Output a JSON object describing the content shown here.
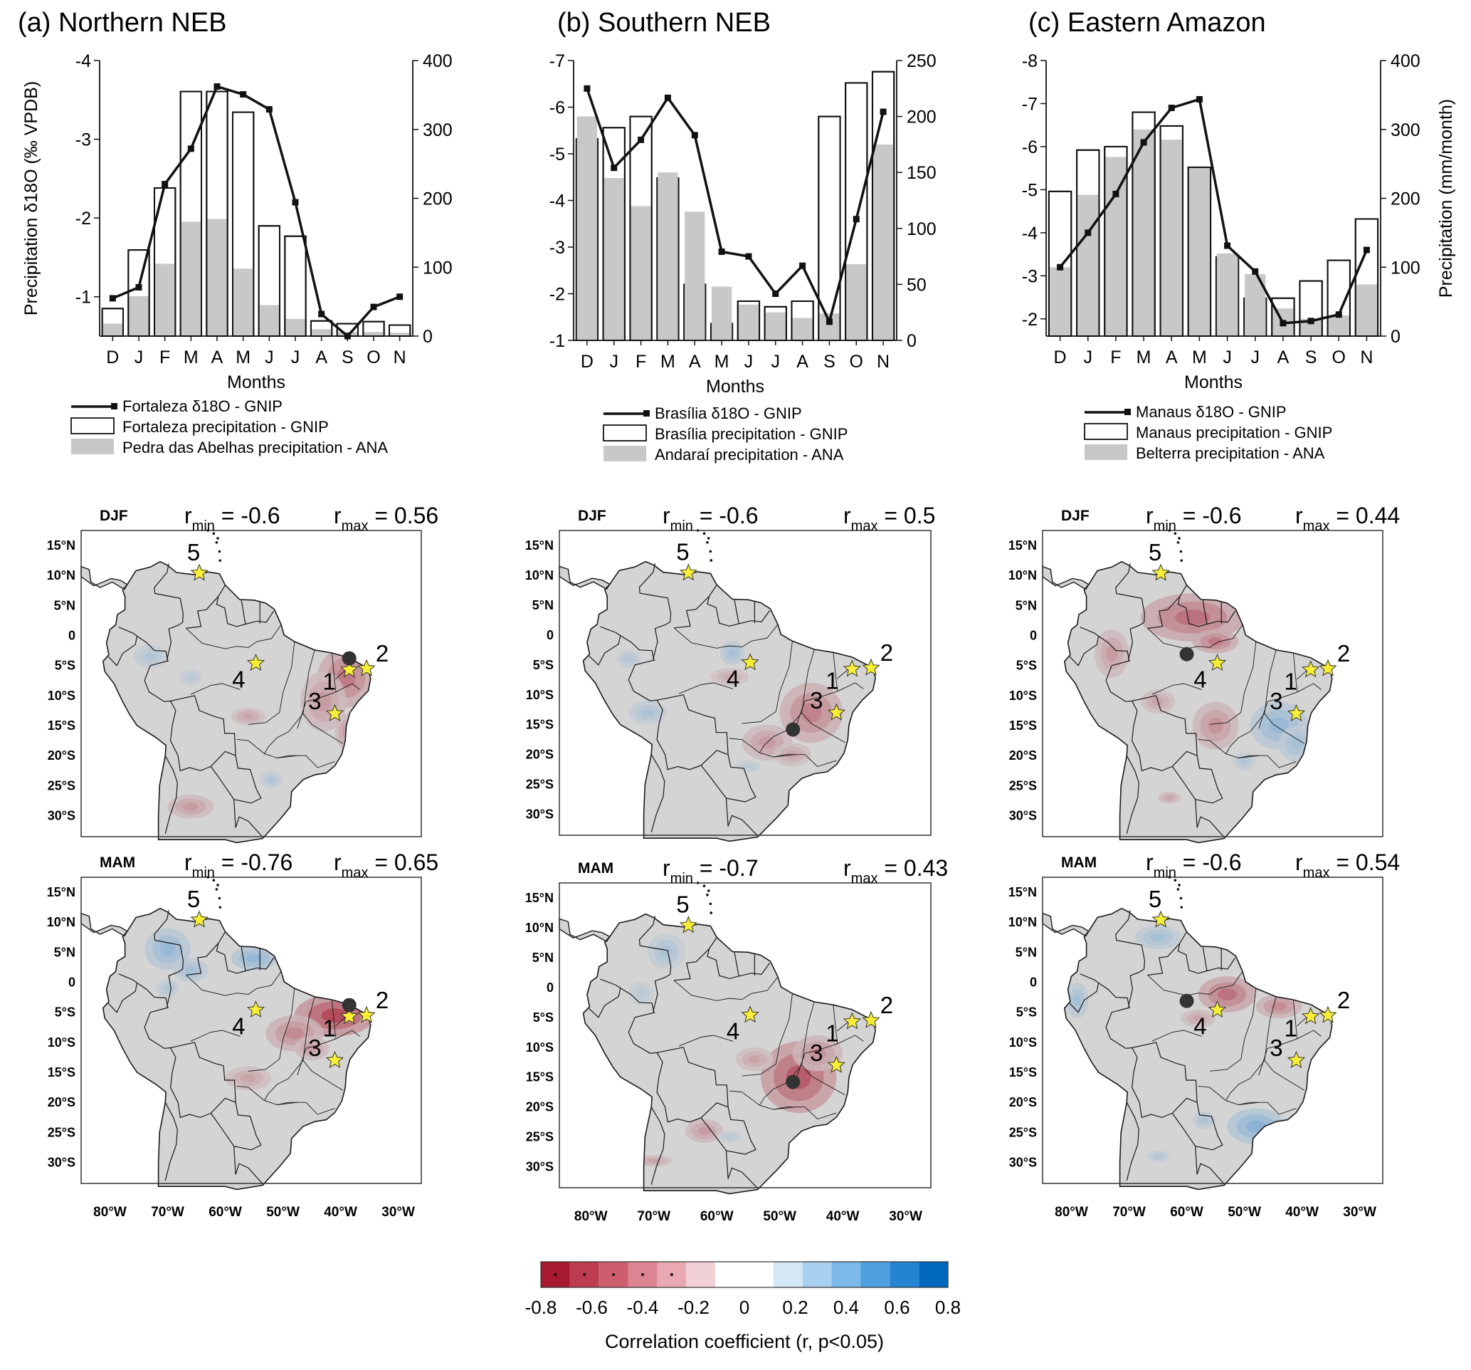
{
  "chart_data": [
    {
      "type": "bar+line",
      "title": "(a) Northern NEB",
      "xlabel": "Months",
      "ylabel_left": "Precipitation δ18O (‰ VPDB)",
      "ylabel_right": "",
      "categories": [
        "D",
        "J",
        "F",
        "M",
        "A",
        "M",
        "J",
        "J",
        "A",
        "S",
        "O",
        "N"
      ],
      "yleft_ticks": [
        "-4",
        "-3",
        "-2",
        "-1"
      ],
      "yleft_range": [
        -0.5,
        -4.0
      ],
      "yright_ticks": [
        "0",
        "100",
        "200",
        "300",
        "400"
      ],
      "yright_range": [
        0,
        400
      ],
      "series": [
        {
          "name": "Fortaleza δ18O - GNIP",
          "axis": "left",
          "kind": "line",
          "values": [
            -0.98,
            -1.12,
            -2.43,
            -2.88,
            -3.67,
            -3.57,
            -3.38,
            -2.2,
            -0.78,
            -0.5,
            -0.87,
            -1.0
          ]
        },
        {
          "name": "Fortaleza precipitation - GNIP",
          "axis": "right",
          "kind": "bar-outline",
          "values": [
            40,
            125,
            215,
            355,
            355,
            325,
            160,
            145,
            22,
            18,
            21,
            16
          ]
        },
        {
          "name": "Pedra das Abelhas precipitation - ANA",
          "axis": "right",
          "kind": "bar-gray",
          "values": [
            18,
            58,
            105,
            166,
            170,
            98,
            45,
            25,
            10,
            6,
            6,
            5
          ]
        }
      ],
      "legend": [
        "Fortaleza δ18O - GNIP",
        "Fortaleza precipitation - GNIP",
        "Pedra das Abelhas precipitation - ANA"
      ],
      "maps": [
        {
          "season": "DJF",
          "rmin": "-0.6",
          "rmax": "0.56",
          "dot": "Fortaleza"
        },
        {
          "season": "MAM",
          "rmin": "-0.76",
          "rmax": "0.65",
          "dot": "Fortaleza"
        }
      ]
    },
    {
      "type": "bar+line",
      "title": "(b) Southern NEB",
      "xlabel": "Months",
      "ylabel_left": "",
      "ylabel_right": "",
      "categories": [
        "D",
        "J",
        "F",
        "M",
        "A",
        "M",
        "J",
        "J",
        "A",
        "S",
        "O",
        "N"
      ],
      "yleft_ticks": [
        "-7",
        "-6",
        "-5",
        "-4",
        "-3",
        "-2",
        "-1"
      ],
      "yleft_range": [
        -1.0,
        -7.0
      ],
      "yright_ticks": [
        "0",
        "50",
        "100",
        "150",
        "200",
        "250"
      ],
      "yright_range": [
        0,
        250
      ],
      "series": [
        {
          "name": "Brasília δ18O - GNIP",
          "axis": "left",
          "kind": "line",
          "values": [
            -6.4,
            -4.7,
            -5.3,
            -6.2,
            -5.4,
            -2.9,
            -2.8,
            -2.0,
            -2.6,
            -1.4,
            -3.6,
            -5.9
          ]
        },
        {
          "name": "Brasília precipitation - GNIP",
          "axis": "right",
          "kind": "bar-outline",
          "values": [
            180,
            190,
            200,
            145,
            50,
            15,
            35,
            30,
            35,
            200,
            230,
            240
          ]
        },
        {
          "name": "Andaraí precipitation - ANA",
          "axis": "right",
          "kind": "bar-gray",
          "values": [
            200,
            145,
            120,
            150,
            115,
            48,
            32,
            25,
            20,
            24,
            68,
            175
          ]
        }
      ],
      "legend": [
        "Brasília δ18O - GNIP",
        "Brasília precipitation - GNIP",
        "Andaraí precipitation - ANA"
      ],
      "maps": [
        {
          "season": "DJF",
          "rmin": "-0.6",
          "rmax": "0.5",
          "dot": "Brasília"
        },
        {
          "season": "MAM",
          "rmin": "-0.7",
          "rmax": "0.43",
          "dot": "Brasília"
        }
      ]
    },
    {
      "type": "bar+line",
      "title": "(c) Eastern Amazon",
      "xlabel": "Months",
      "ylabel_left": "",
      "ylabel_right": "Precipitation (mm/month)",
      "categories": [
        "D",
        "J",
        "F",
        "M",
        "A",
        "M",
        "J",
        "J",
        "A",
        "S",
        "O",
        "N"
      ],
      "yleft_ticks": [
        "-8",
        "-7",
        "-6",
        "-5",
        "-4",
        "-3",
        "-2"
      ],
      "yleft_range": [
        -1.6,
        -8.0
      ],
      "yright_ticks": [
        "0",
        "100",
        "200",
        "300",
        "400"
      ],
      "yright_range": [
        0,
        400
      ],
      "series": [
        {
          "name": "Manaus δ18O - GNIP",
          "axis": "left",
          "kind": "line",
          "values": [
            -3.2,
            -4.0,
            -4.9,
            -6.1,
            -6.9,
            -7.1,
            -3.7,
            -3.1,
            -1.9,
            -1.95,
            -2.1,
            -3.6
          ]
        },
        {
          "name": "Manaus precipitation - GNIP",
          "axis": "right",
          "kind": "bar-outline",
          "values": [
            210,
            270,
            275,
            325,
            305,
            245,
            115,
            55,
            55,
            80,
            110,
            170
          ]
        },
        {
          "name": "Belterra precipitation - ANA",
          "axis": "right",
          "kind": "bar-gray",
          "values": [
            100,
            205,
            260,
            300,
            285,
            245,
            120,
            90,
            40,
            25,
            30,
            75
          ]
        }
      ],
      "legend": [
        "Manaus δ18O - GNIP",
        "Manaus precipitation - GNIP",
        "Belterra precipitation - ANA"
      ],
      "maps": [
        {
          "season": "DJF",
          "rmin": "-0.6",
          "rmax": "0.44",
          "dot": "Manaus"
        },
        {
          "season": "MAM",
          "rmin": "-0.6",
          "rmax": "0.54",
          "dot": "Manaus"
        }
      ]
    }
  ],
  "map_axes": {
    "lat_labels": [
      "15°N",
      "10°N",
      "5°N",
      "0",
      "5°S",
      "10°S",
      "15°S",
      "20°S",
      "25°S",
      "30°S"
    ],
    "lon_labels": [
      "80°W",
      "70°W",
      "60°W",
      "50°W",
      "40°W",
      "30°W"
    ],
    "sites": [
      "1",
      "2",
      "3",
      "4",
      "5"
    ]
  },
  "colorbar": {
    "ticks": [
      "-0.8",
      "-0.6",
      "-0.4",
      "-0.2",
      "0",
      "0.2",
      "0.4",
      "0.6",
      "0.8"
    ],
    "colors": [
      "#a7192e",
      "#bd3d50",
      "#cd5e6e",
      "#dc8592",
      "#e8a9b3",
      "#f2d1d6",
      "#ffffff",
      "#ffffff",
      "#d3e7f5",
      "#a9d0ef",
      "#7db9e8",
      "#4f9edf",
      "#2484d2",
      "#0068bf"
    ],
    "label": "Correlation coefficient (r, p<0.05)"
  },
  "symbols": {
    "rmin": "r",
    "rmin_sub": "min",
    "rmax": "r",
    "rmax_sub": "max",
    "eq": " = "
  }
}
